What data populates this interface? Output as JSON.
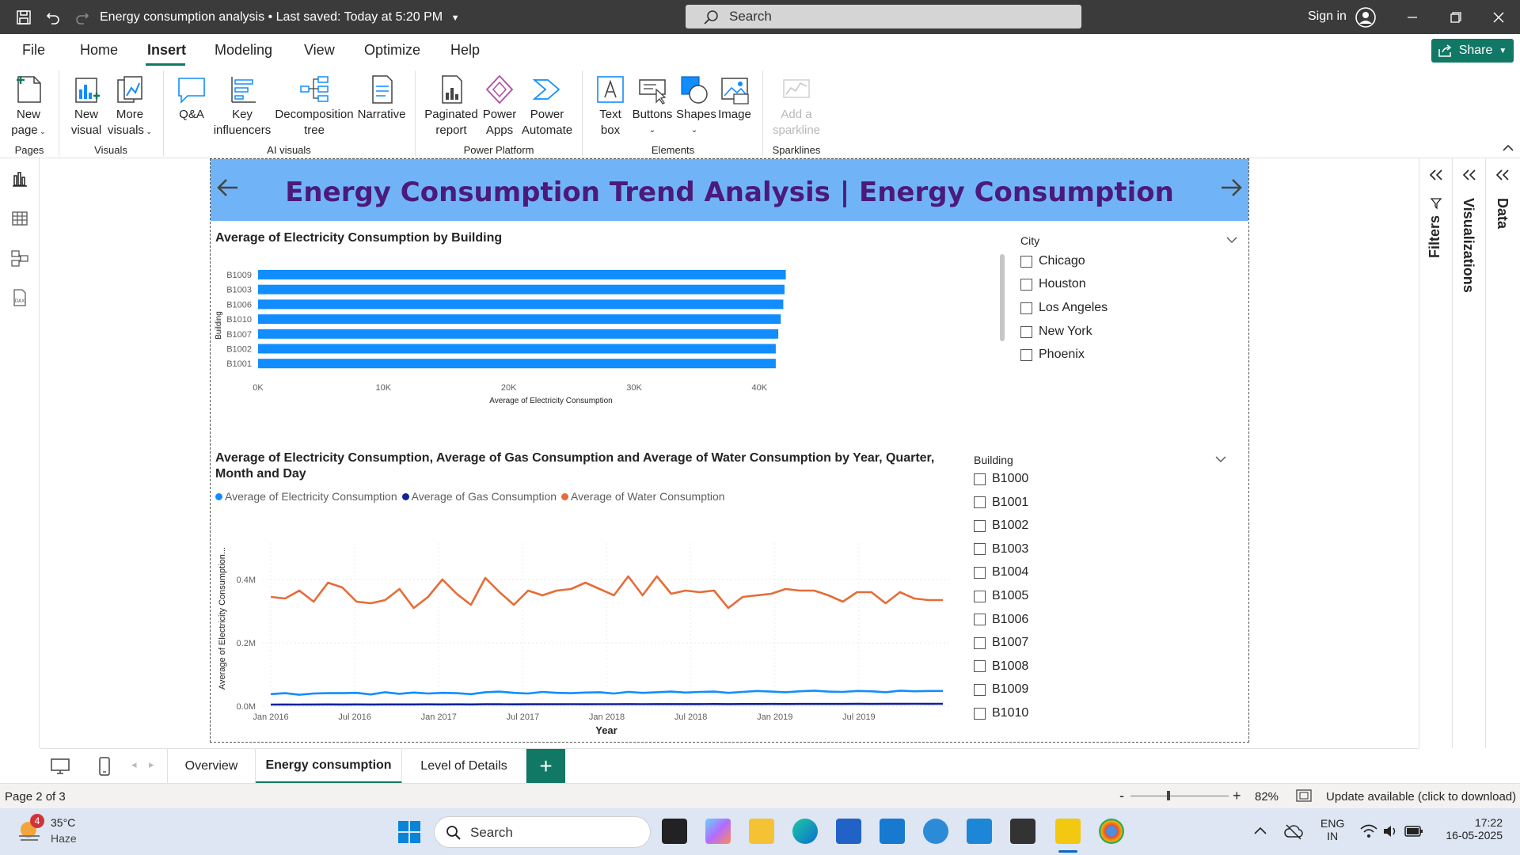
{
  "titlebar": {
    "doc_title": "Energy consumption analysis",
    "saved_status": "Last saved: Today at 5:20 PM",
    "search_placeholder": "Search",
    "signin": "Sign in"
  },
  "menu": {
    "tabs": [
      "File",
      "Home",
      "Insert",
      "Modeling",
      "View",
      "Optimize",
      "Help"
    ],
    "active": "Insert",
    "share": "Share"
  },
  "ribbon": {
    "new_page": [
      "New",
      "page"
    ],
    "new_visual": [
      "New",
      "visual"
    ],
    "more_visuals": [
      "More",
      "visuals"
    ],
    "qa": "Q&A",
    "key_influencers": [
      "Key",
      "influencers"
    ],
    "decomposition_tree": [
      "Decomposition",
      "tree"
    ],
    "narrative": "Narrative",
    "paginated_report": [
      "Paginated",
      "report"
    ],
    "power_apps": [
      "Power",
      "Apps"
    ],
    "power_automate": [
      "Power",
      "Automate"
    ],
    "text_box": [
      "Text",
      "box"
    ],
    "buttons": "Buttons",
    "shapes": "Shapes",
    "image": "Image",
    "add_sparkline": [
      "Add a",
      "sparkline"
    ],
    "groups": [
      "Pages",
      "Visuals",
      "AI visuals",
      "Power Platform",
      "Elements",
      "Sparklines"
    ]
  },
  "report": {
    "banner_title": "Energy Consumption Trend Analysis | Energy Consumption",
    "banner_color": "#70b4f7",
    "title_color": "#4b1a7a"
  },
  "bar_visual": {
    "title": "Average of Electricity Consumption by Building",
    "ylabel": "Building",
    "xlabel": "Average of Electricity Consumption"
  },
  "line_visual": {
    "title_line1": "Average of Electricity Consumption, Average of Gas Consumption and Average of Water Consumption by Year, Quarter,",
    "title_line2": "Month and Day",
    "ylabel": "Average of Electricity Consumption...",
    "xlabel": "Year"
  },
  "city_slicer": {
    "title": "City",
    "items": [
      "Chicago",
      "Houston",
      "Los Angeles",
      "New York",
      "Phoenix"
    ]
  },
  "building_slicer": {
    "title": "Building",
    "items": [
      "B1000",
      "B1001",
      "B1002",
      "B1003",
      "B1004",
      "B1005",
      "B1006",
      "B1007",
      "B1008",
      "B1009",
      "B1010"
    ]
  },
  "panes": {
    "filters": "Filters",
    "visualizations": "Visualizations",
    "data": "Data"
  },
  "page_tabs": {
    "tabs": [
      "Overview",
      "Energy consumption",
      "Level of Details"
    ],
    "active": "Energy consumption"
  },
  "statusbar": {
    "page_info": "Page 2 of 3",
    "zoom": "82%",
    "update": "Update available (click to download)"
  },
  "taskbar": {
    "weather_temp": "35°C",
    "weather_desc": "Haze",
    "weather_badge": "4",
    "search": "Search",
    "lang1": "ENG",
    "lang2": "IN",
    "time": "17:22",
    "date": "16-05-2025"
  },
  "chart_data": [
    {
      "type": "bar",
      "title": "Average of Electricity Consumption by Building",
      "orientation": "horizontal",
      "categories": [
        "B1009",
        "B1003",
        "B1006",
        "B1010",
        "B1007",
        "B1002",
        "B1001"
      ],
      "values": [
        42100,
        42000,
        41900,
        41700,
        41500,
        41300,
        41300
      ],
      "xlabel": "Average of Electricity Consumption",
      "ylabel": "Building",
      "xlim": [
        0,
        42000
      ],
      "xticks": [
        0,
        10000,
        20000,
        30000,
        40000
      ],
      "xtick_labels": [
        "0K",
        "10K",
        "20K",
        "30K",
        "40K"
      ],
      "color": "#118dff"
    },
    {
      "type": "line",
      "title": "Average of Electricity Consumption, Average of Gas Consumption and Average of Water Consumption by Year, Quarter, Month and Day",
      "xlabel": "Year",
      "ylabel": "Average of Electricity Consumption...",
      "x_tick_labels": [
        "Jan 2016",
        "Jul 2016",
        "Jan 2017",
        "Jul 2017",
        "Jan 2018",
        "Jul 2018",
        "Jan 2019",
        "Jul 2019"
      ],
      "x_range_months": [
        0,
        48
      ],
      "y_ticks": [
        0,
        200000,
        400000
      ],
      "y_tick_labels": [
        "0.0M",
        "0.2M",
        "0.4M"
      ],
      "ylim": [
        0,
        500000
      ],
      "legend_position": "top-left",
      "series": [
        {
          "name": "Average of Water Consumption",
          "color": "#e66c37",
          "values": [
            345000,
            340000,
            365000,
            330000,
            390000,
            375000,
            330000,
            325000,
            335000,
            370000,
            310000,
            345000,
            400000,
            355000,
            320000,
            405000,
            360000,
            320000,
            365000,
            350000,
            365000,
            370000,
            390000,
            370000,
            350000,
            410000,
            350000,
            410000,
            355000,
            365000,
            360000,
            365000,
            310000,
            345000,
            350000,
            355000,
            370000,
            365000,
            365000,
            350000,
            330000,
            360000,
            360000,
            325000,
            360000,
            340000,
            335000,
            335000
          ]
        },
        {
          "name": "Average of Electricity Consumption",
          "color": "#118dff",
          "values": [
            38000,
            41000,
            36000,
            40000,
            41000,
            41000,
            42000,
            37000,
            44000,
            39000,
            43000,
            40000,
            42000,
            41000,
            38000,
            44000,
            46000,
            42000,
            40000,
            45000,
            42000,
            41000,
            43000,
            44000,
            40000,
            45000,
            42000,
            44000,
            46000,
            43000,
            45000,
            46000,
            42000,
            45000,
            48000,
            46000,
            44000,
            47000,
            49000,
            46000,
            45000,
            48000,
            47000,
            44000,
            49000,
            47000,
            48000,
            48000
          ]
        },
        {
          "name": "Average of Gas Consumption",
          "color": "#12239e",
          "values": [
            5000,
            5200,
            5100,
            5300,
            5400,
            5200,
            5500,
            5300,
            5600,
            5400,
            5500,
            5700,
            5600,
            5800,
            5500,
            5900,
            6000,
            5800,
            5900,
            6100,
            6000,
            6200,
            6100,
            6300,
            6200,
            6400,
            6300,
            6500,
            6400,
            6600,
            6500,
            6700,
            6600,
            6800,
            6700,
            6900,
            6800,
            7000,
            6900,
            7100,
            7000,
            7200,
            7100,
            7300,
            7200,
            7400,
            7300,
            7500
          ]
        }
      ]
    }
  ]
}
